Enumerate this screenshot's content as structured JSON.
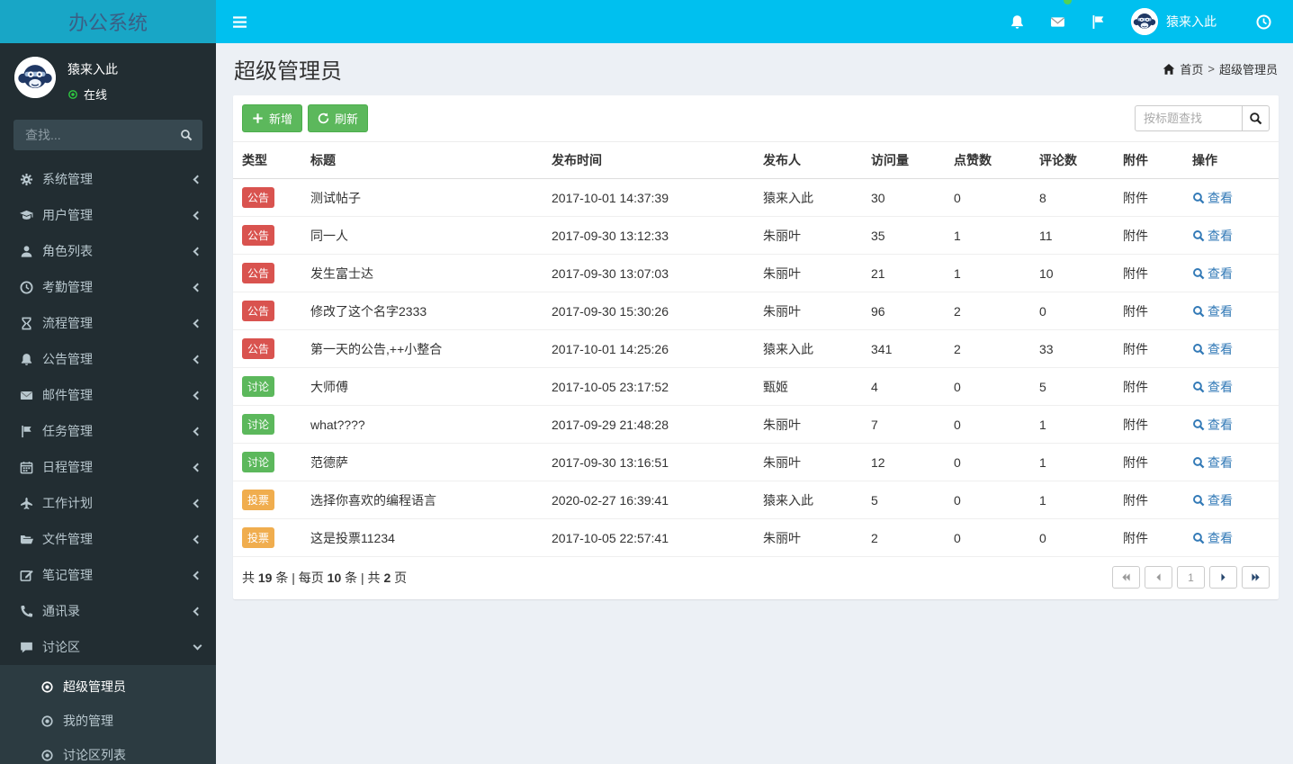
{
  "app": {
    "logo_title": "办公系统"
  },
  "navbar": {
    "user_name": "猿来入此"
  },
  "colors": {
    "navbar_bg": "#00c0ef",
    "logo_bg": "#18a6c6",
    "sidebar_bg": "#222d32",
    "submenu_bg": "#2c3b41",
    "badge_danger": "#d9534f",
    "badge_success": "#5cb85c",
    "badge_warning": "#f0ad4e",
    "button_green": "#5cb85c",
    "link_blue": "#337ab7",
    "online_green": "#2ecc40",
    "notification_dot_green": "#54d154"
  },
  "sidebar": {
    "user": {
      "name": "猿来入此",
      "status": "在线"
    },
    "search_placeholder": "查找...",
    "menu": [
      {
        "name": "sidebar-item-system-management",
        "label": "系统管理",
        "icon": "gear"
      },
      {
        "name": "sidebar-item-user-management",
        "label": "用户管理",
        "icon": "graduation-cap"
      },
      {
        "name": "sidebar-item-role-list",
        "label": "角色列表",
        "icon": "user"
      },
      {
        "name": "sidebar-item-attendance",
        "label": "考勤管理",
        "icon": "clock"
      },
      {
        "name": "sidebar-item-workflow",
        "label": "流程管理",
        "icon": "hourglass"
      },
      {
        "name": "sidebar-item-announcement",
        "label": "公告管理",
        "icon": "bell"
      },
      {
        "name": "sidebar-item-mail-management",
        "label": "邮件管理",
        "icon": "envelope"
      },
      {
        "name": "sidebar-item-task-management",
        "label": "任务管理",
        "icon": "flag"
      },
      {
        "name": "sidebar-item-schedule",
        "label": "日程管理",
        "icon": "calendar"
      },
      {
        "name": "sidebar-item-work-plan",
        "label": "工作计划",
        "icon": "plane"
      },
      {
        "name": "sidebar-item-file-management",
        "label": "文件管理",
        "icon": "folder"
      },
      {
        "name": "sidebar-item-note-management",
        "label": "笔记管理",
        "icon": "edit"
      },
      {
        "name": "sidebar-item-contacts",
        "label": "通讯录",
        "icon": "phone"
      },
      {
        "name": "sidebar-item-forum",
        "label": "讨论区",
        "icon": "comment",
        "expanded": true
      }
    ],
    "submenu": [
      {
        "name": "sidebar-subitem-super-admin",
        "label": "超级管理员",
        "active": true
      },
      {
        "name": "sidebar-subitem-my-management",
        "label": "我的管理"
      },
      {
        "name": "sidebar-subitem-forum-list",
        "label": "讨论区列表"
      }
    ]
  },
  "page": {
    "title": "超级管理员",
    "breadcrumb_home": "首页",
    "breadcrumb_sep": ">",
    "breadcrumb_current": "超级管理员"
  },
  "toolbar": {
    "add_label": "新增",
    "refresh_label": "刷新",
    "search_placeholder": "按标题查找"
  },
  "table": {
    "columns": [
      {
        "label": "类型"
      },
      {
        "label": "标题"
      },
      {
        "label": "发布时间"
      },
      {
        "label": "发布人"
      },
      {
        "label": "访问量"
      },
      {
        "label": "点赞数"
      },
      {
        "label": "评论数"
      },
      {
        "label": "附件"
      },
      {
        "label": "操作"
      }
    ],
    "rows": [
      {
        "type": "公告",
        "type_class": "b-danger",
        "title": "测试帖子",
        "time": "2017-10-01 14:37:39",
        "author": "猿来入此",
        "views": "30",
        "likes": "0",
        "comments": "8",
        "attachment": "附件",
        "action": "查看"
      },
      {
        "type": "公告",
        "type_class": "b-danger",
        "title": "同一人",
        "time": "2017-09-30 13:12:33",
        "author": "朱丽叶",
        "views": "35",
        "likes": "1",
        "comments": "11",
        "attachment": "附件",
        "action": "查看"
      },
      {
        "type": "公告",
        "type_class": "b-danger",
        "title": "发生富士达",
        "time": "2017-09-30 13:07:03",
        "author": "朱丽叶",
        "views": "21",
        "likes": "1",
        "comments": "10",
        "attachment": "附件",
        "action": "查看"
      },
      {
        "type": "公告",
        "type_class": "b-danger",
        "title": "修改了这个名字2333",
        "time": "2017-09-30 15:30:26",
        "author": "朱丽叶",
        "views": "96",
        "likes": "2",
        "comments": "0",
        "attachment": "附件",
        "action": "查看"
      },
      {
        "type": "公告",
        "type_class": "b-danger",
        "title": "第一天的公告,++小整合",
        "time": "2017-10-01 14:25:26",
        "author": "猿来入此",
        "views": "341",
        "likes": "2",
        "comments": "33",
        "attachment": "附件",
        "action": "查看"
      },
      {
        "type": "讨论",
        "type_class": "b-success",
        "title": "大师傅",
        "time": "2017-10-05 23:17:52",
        "author": "甄姬",
        "views": "4",
        "likes": "0",
        "comments": "5",
        "attachment": "附件",
        "action": "查看"
      },
      {
        "type": "讨论",
        "type_class": "b-success",
        "title": "what????",
        "time": "2017-09-29 21:48:28",
        "author": "朱丽叶",
        "views": "7",
        "likes": "0",
        "comments": "1",
        "attachment": "附件",
        "action": "查看"
      },
      {
        "type": "讨论",
        "type_class": "b-success",
        "title": "范德萨",
        "time": "2017-09-30 13:16:51",
        "author": "朱丽叶",
        "views": "12",
        "likes": "0",
        "comments": "1",
        "attachment": "附件",
        "action": "查看"
      },
      {
        "type": "投票",
        "type_class": "b-warning",
        "title": "选择你喜欢的编程语言",
        "time": "2020-02-27 16:39:41",
        "author": "猿来入此",
        "views": "5",
        "likes": "0",
        "comments": "1",
        "attachment": "附件",
        "action": "查看"
      },
      {
        "type": "投票",
        "type_class": "b-warning",
        "title": "这是投票11234",
        "time": "2017-10-05 22:57:41",
        "author": "朱丽叶",
        "views": "2",
        "likes": "0",
        "comments": "0",
        "attachment": "附件",
        "action": "查看"
      }
    ]
  },
  "pagination": {
    "summary": [
      {
        "text": "共 "
      },
      {
        "text": "19",
        "bold": true
      },
      {
        "text": " 条 | 每页 "
      },
      {
        "text": "10",
        "bold": true
      },
      {
        "text": " 条 | 共 "
      },
      {
        "text": "2",
        "bold": true
      },
      {
        "text": " 页"
      }
    ],
    "buttons": [
      {
        "name": "first-page-button",
        "icon": "pager-first",
        "disabled": true
      },
      {
        "name": "prev-page-button",
        "icon": "pager-prev",
        "disabled": true
      },
      {
        "name": "page-number-button",
        "label": "1",
        "current": true
      },
      {
        "name": "next-page-button",
        "icon": "pager-next"
      },
      {
        "name": "last-page-button",
        "icon": "pager-last"
      }
    ]
  }
}
